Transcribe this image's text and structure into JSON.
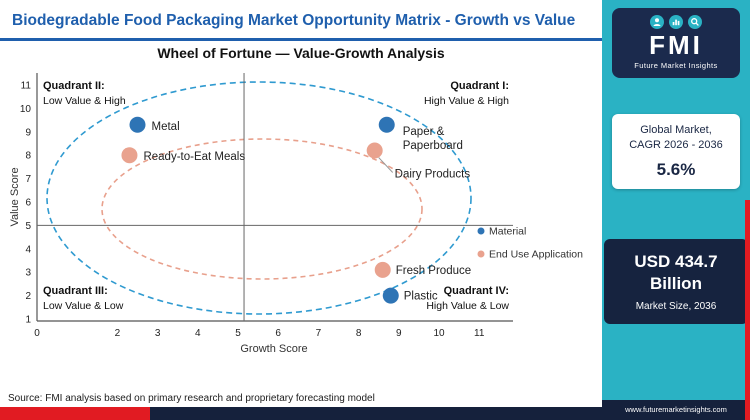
{
  "header": {
    "title": "Biodegradable Food Packaging Market Opportunity Matrix - Growth vs Value"
  },
  "source": "Source: FMI analysis based on primary research and proprietary forecasting model",
  "chart_data": {
    "type": "scatter",
    "title": "Wheel of Fortune — Value-Growth Analysis",
    "xlabel": "Growth Score",
    "ylabel": "Value Score",
    "xlim": [
      0,
      11.5
    ],
    "ylim": [
      0.5,
      11.5
    ],
    "x_ticks": [
      0,
      2,
      3,
      4,
      5,
      6,
      7,
      8,
      9,
      10,
      11
    ],
    "y_ticks": [
      1,
      2,
      3,
      4,
      5,
      6,
      7,
      8,
      9,
      10,
      11
    ],
    "grid": false,
    "legend_position": "middle-right",
    "quadrant_divider": {
      "x": 5.15,
      "y": 5
    },
    "quadrants": [
      {
        "name": "Quadrant II:",
        "desc": "Low Value & High"
      },
      {
        "name": "Quadrant I:",
        "desc": "High Value & High"
      },
      {
        "name": "Quadrant III:",
        "desc": "Low Value & Low"
      },
      {
        "name": "Quadrant IV:",
        "desc": "High Value & Low"
      }
    ],
    "series": [
      {
        "name": "Material",
        "color": "#2e74b5",
        "points": [
          {
            "label": "Metal",
            "x": 2.5,
            "y": 9.3,
            "label_dx": 14,
            "label_dy": 5
          },
          {
            "label": "Paper &\nPaperboard",
            "x": 8.7,
            "y": 9.3,
            "label_dx": 16,
            "label_dy": 10
          },
          {
            "label": "Plastic",
            "x": 8.8,
            "y": 2.0,
            "label_dx": 13,
            "label_dy": 4
          }
        ]
      },
      {
        "name": "End Use Application",
        "color": "#e9a28e",
        "points": [
          {
            "label": "Ready-to-Eat Meals",
            "x": 2.3,
            "y": 8.0,
            "label_dx": 14,
            "label_dy": 5
          },
          {
            "label": "Dairy Products",
            "x": 8.4,
            "y": 8.2,
            "label_dx": 20,
            "label_dy": 27,
            "leader": true
          },
          {
            "label": "Fresh Produce",
            "x": 8.6,
            "y": 3.1,
            "label_dx": 13,
            "label_dy": 4
          }
        ]
      }
    ]
  },
  "sidebar": {
    "logo": {
      "text": "FMI",
      "subtext": "Future Market Insights"
    },
    "cagr": {
      "line1": "Global Market,",
      "line2": "CAGR 2026 - 2036",
      "value": "5.6%"
    },
    "market_size": {
      "value": "USD 434.7 Billion",
      "label": "Market Size, 2036"
    },
    "footer_url": "www.futuremarketinsights.com"
  },
  "colors": {
    "title_blue": "#1f5fad",
    "accent_teal": "#2ab2c4",
    "navy": "#1b2a4d",
    "red": "#e11b22",
    "material": "#2e74b5",
    "end_use": "#e9a28e"
  }
}
